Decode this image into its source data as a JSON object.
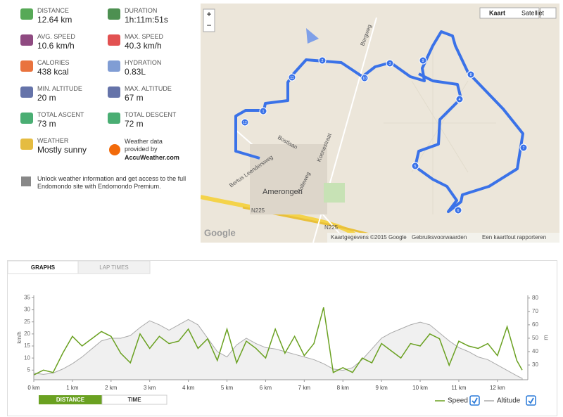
{
  "stats": [
    {
      "label": "DISTANCE",
      "value": "12.64 km"
    },
    {
      "label": "DURATION",
      "value": "1h:11m:51s"
    },
    {
      "label": "AVG. SPEED",
      "value": "10.6 km/h"
    },
    {
      "label": "MAX. SPEED",
      "value": "40.3 km/h"
    },
    {
      "label": "CALORIES",
      "value": "438 kcal"
    },
    {
      "label": "HYDRATION",
      "value": "0.83L"
    },
    {
      "label": "MIN. ALTITUDE",
      "value": "20 m"
    },
    {
      "label": "MAX. ALTITUDE",
      "value": "67 m"
    },
    {
      "label": "TOTAL ASCENT",
      "value": "73 m"
    },
    {
      "label": "TOTAL DESCENT",
      "value": "72 m"
    },
    {
      "label": "WEATHER",
      "value": "Mostly sunny"
    }
  ],
  "weather_credit": {
    "text": "Weather data provided by",
    "link": "AccuWeather.com"
  },
  "premium_note": "Unlock weather information and get access to the full Endomondo site with Endomondo Premium.",
  "map": {
    "buttons": [
      "Kaart",
      "Satelliet"
    ],
    "zoom": [
      "+",
      "−"
    ],
    "streets": [
      "Bergweg",
      "Bostlaan",
      "Bertus Leendersweg",
      "Koenestraat",
      "Holleweg",
      "N225",
      "N225"
    ],
    "town": "Amerongen",
    "markers": [
      "1",
      "2",
      "3",
      "4",
      "5",
      "6",
      "7",
      "8",
      "9",
      "10",
      "11",
      "12"
    ],
    "footer": [
      "Kaartgegevens ©2015 Google",
      "Gebruiksvoorwaarden",
      "Een kaartfout rapporteren"
    ],
    "logo": "Google"
  },
  "tabs": [
    "GRAPHS",
    "LAP TIMES"
  ],
  "toggle": [
    "DISTANCE",
    "TIME"
  ],
  "chart_data": {
    "type": "line",
    "y_label": "km/h",
    "y2_label": "m",
    "x": [
      0,
      0.25,
      0.5,
      0.75,
      1,
      1.25,
      1.5,
      1.75,
      2,
      2.25,
      2.5,
      2.75,
      3,
      3.25,
      3.5,
      3.75,
      4,
      4.25,
      4.5,
      4.75,
      5,
      5.25,
      5.5,
      5.75,
      6,
      6.25,
      6.5,
      6.75,
      7,
      7.25,
      7.5,
      7.75,
      8,
      8.25,
      8.5,
      8.75,
      9,
      9.25,
      9.5,
      9.75,
      10,
      10.25,
      10.5,
      10.75,
      11,
      11.25,
      11.5,
      11.75,
      12,
      12.25,
      12.5,
      12.64
    ],
    "series": [
      {
        "name": "Speed",
        "color": "#6aa121",
        "values": [
          3,
          5,
          4,
          12,
          19,
          15,
          18,
          21,
          19,
          12,
          8,
          20,
          14,
          19,
          16,
          17,
          22,
          14,
          18,
          9,
          22,
          8,
          17,
          14,
          10,
          22,
          12,
          19,
          11,
          16,
          31,
          4,
          6,
          4,
          10,
          8,
          16,
          13,
          10,
          16,
          15,
          20,
          18,
          7,
          17,
          15,
          14,
          16,
          11,
          23,
          9,
          5
        ]
      },
      {
        "name": "Altitude",
        "color": "#aaaaaa",
        "axis": "y2",
        "values": [
          24,
          23,
          24,
          27,
          31,
          36,
          42,
          48,
          50,
          50,
          52,
          58,
          63,
          60,
          56,
          60,
          64,
          60,
          50,
          40,
          36,
          45,
          50,
          46,
          43,
          42,
          40,
          38,
          36,
          34,
          31,
          27,
          26,
          28,
          34,
          42,
          50,
          54,
          57,
          60,
          62,
          60,
          54,
          48,
          43,
          40,
          36,
          34,
          30,
          26,
          22,
          20
        ]
      }
    ],
    "xlim": [
      0,
      12.64
    ],
    "xticks": [
      {
        "value": 0,
        "label": "0 km"
      },
      {
        "value": 1,
        "label": "1 km"
      },
      {
        "value": 2,
        "label": "2 km"
      },
      {
        "value": 3,
        "label": "3 km"
      },
      {
        "value": 4,
        "label": "4 km"
      },
      {
        "value": 5,
        "label": "5 km"
      },
      {
        "value": 6,
        "label": "6 km"
      },
      {
        "value": 7,
        "label": "7 km"
      },
      {
        "value": 8,
        "label": "8 km"
      },
      {
        "value": 9,
        "label": "9 km"
      },
      {
        "value": 10,
        "label": "10 km"
      },
      {
        "value": 11,
        "label": "11 km"
      },
      {
        "value": 12,
        "label": "12 km"
      }
    ],
    "ylim": [
      1,
      36
    ],
    "yticks": [
      5,
      10,
      15,
      20,
      25,
      30,
      35
    ],
    "y2lim": [
      19,
      82
    ],
    "y2ticks": [
      30,
      40,
      50,
      60,
      70,
      80
    ],
    "grid": false
  }
}
